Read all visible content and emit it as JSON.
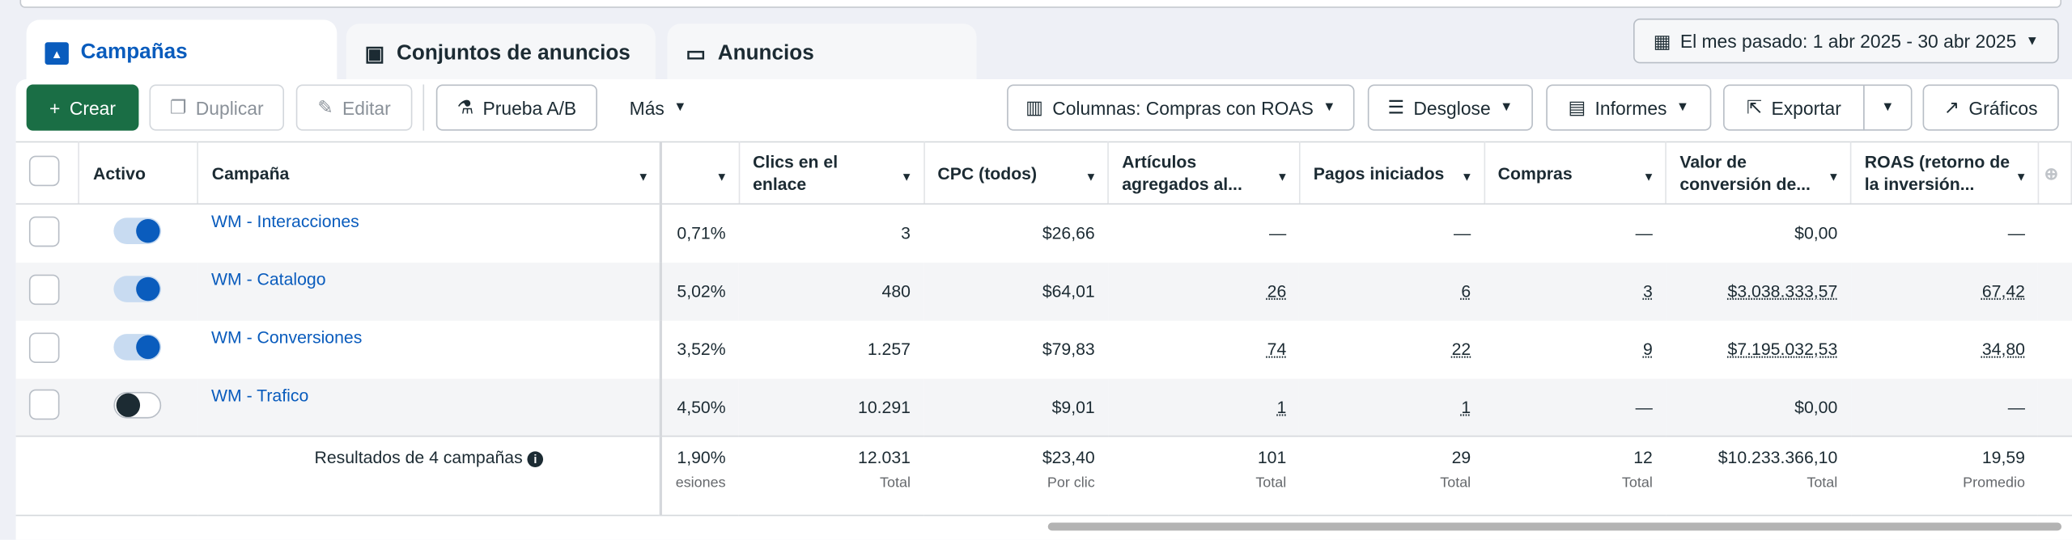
{
  "tabs": [
    {
      "label": "Campañas",
      "icon": "campaign-folder-icon"
    },
    {
      "label": "Conjuntos de anuncios",
      "icon": "grid-icon"
    },
    {
      "label": "Anuncios",
      "icon": "ad-window-icon"
    }
  ],
  "date_range": "El mes pasado: 1 abr 2025 - 30 abr 2025",
  "toolbar": {
    "crear": "Crear",
    "duplicar": "Duplicar",
    "editar": "Editar",
    "prueba": "Prueba A/B",
    "mas": "Más",
    "columnas": "Columnas: Compras con ROAS",
    "desglose": "Desglose",
    "informes": "Informes",
    "exportar": "Exportar",
    "graficos": "Gráficos"
  },
  "columns": [
    "Activo",
    "Campaña",
    "",
    "Clics en el enlace",
    "CPC (todos)",
    "Artículos agregados al...",
    "Pagos iniciados",
    "Compras",
    "Valor de conversión de...",
    "ROAS (retorno de la inversión..."
  ],
  "rows": [
    {
      "active": true,
      "name": "WM - Interacciones",
      "ctr": "0,71%",
      "clics": "3",
      "cpc": "$26,66",
      "art": "—",
      "pagos": "—",
      "compras": "—",
      "valor": "$0,00",
      "roas": "—"
    },
    {
      "active": true,
      "name": "WM - Catalogo",
      "ctr": "5,02%",
      "clics": "480",
      "cpc": "$64,01",
      "art": "26",
      "pagos": "6",
      "compras": "3",
      "valor": "$3.038.333,57",
      "roas": "67,42"
    },
    {
      "active": true,
      "name": "WM - Conversiones",
      "ctr": "3,52%",
      "clics": "1.257",
      "cpc": "$79,83",
      "art": "74",
      "pagos": "22",
      "compras": "9",
      "valor": "$7.195.032,53",
      "roas": "34,80"
    },
    {
      "active": false,
      "name": "WM - Trafico",
      "ctr": "4,50%",
      "clics": "10.291",
      "cpc": "$9,01",
      "art": "1",
      "pagos": "1",
      "compras": "—",
      "valor": "$0,00",
      "roas": "—"
    }
  ],
  "summary": {
    "label": "Resultados de 4 campañas",
    "ctr": "1,90%",
    "ctr_sub": "esiones",
    "clics": "12.031",
    "clics_sub": "Total",
    "cpc": "$23,40",
    "cpc_sub": "Por clic",
    "art": "101",
    "art_sub": "Total",
    "pagos": "29",
    "pagos_sub": "Total",
    "compras": "12",
    "compras_sub": "Total",
    "valor": "$10.233.366,10",
    "valor_sub": "Total",
    "roas": "19,59",
    "roas_sub": "Promedio"
  }
}
